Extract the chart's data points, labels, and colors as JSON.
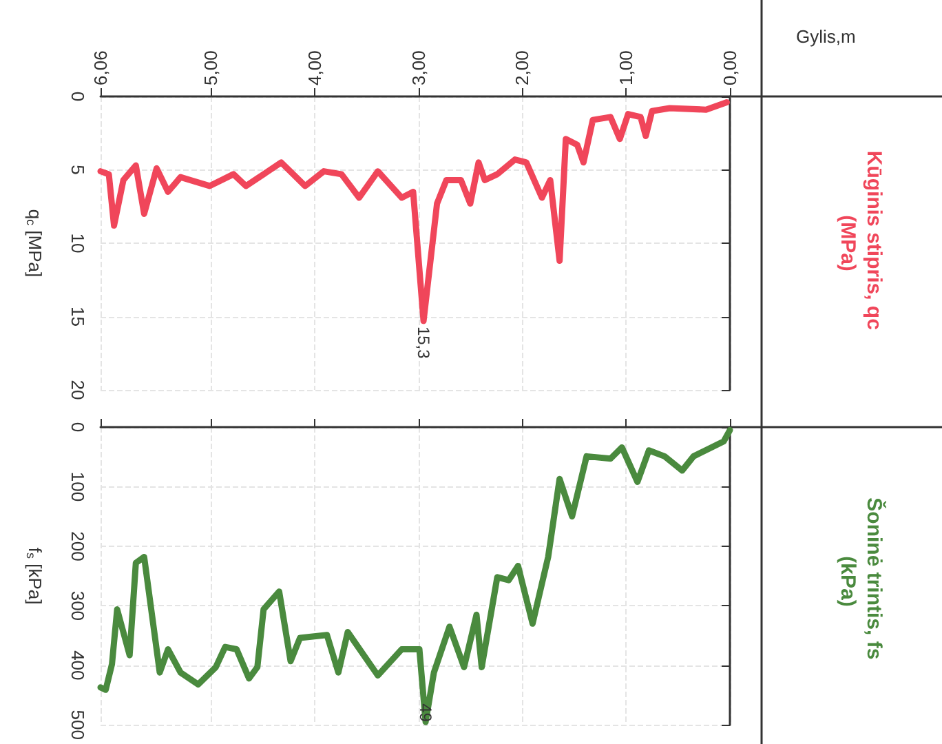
{
  "chart_data": [
    {
      "type": "line",
      "xlabel": "Gylis,m",
      "ylabel": "q$_{c}$ [MPa]",
      "xlim": [
        6.06,
        0
      ],
      "xticks": [
        {
          "value": 6.06,
          "label": "6,06"
        },
        {
          "value": 5,
          "label": "5,00"
        },
        {
          "value": 4,
          "label": "4,00"
        },
        {
          "value": 3,
          "label": "3,00"
        },
        {
          "value": 2,
          "label": "2,00"
        },
        {
          "value": 1,
          "label": "1,00"
        },
        {
          "value": 0,
          "label": "0,00"
        }
      ],
      "ylim": [
        20,
        0
      ],
      "yticks": [
        0,
        5,
        10,
        15,
        20
      ],
      "grid": true,
      "marker": "none",
      "line_style": "solid",
      "series": [
        {
          "name": "Kūginis stipris, qc (MPa)",
          "color": "#f0465a",
          "x": [
            0.03,
            0.23,
            0.58,
            0.75,
            0.81,
            0.86,
            0.98,
            1.06,
            1.15,
            1.32,
            1.41,
            1.47,
            1.58,
            1.64,
            1.73,
            1.81,
            1.96,
            2.07,
            2.24,
            2.36,
            2.42,
            2.5,
            2.59,
            2.73,
            2.82,
            2.95,
            3.05,
            3.16,
            3.39,
            3.57,
            3.74,
            3.91,
            4.09,
            4.32,
            4.49,
            4.66,
            4.78,
            5.01,
            5.29,
            5.41,
            5.52,
            5.64,
            5.72,
            5.84,
            5.93,
            5.98,
            6.06
          ],
          "values": [
            0.4,
            0.9,
            0.8,
            1.0,
            2.7,
            1.4,
            1.2,
            2.9,
            1.4,
            1.6,
            4.5,
            3.3,
            2.9,
            11.2,
            5.7,
            6.9,
            4.5,
            4.3,
            5.3,
            5.7,
            4.5,
            7.3,
            5.7,
            5.7,
            7.3,
            15.3,
            6.5,
            6.9,
            5.1,
            6.9,
            5.3,
            5.1,
            6.1,
            4.5,
            5.3,
            6.1,
            5.3,
            6.1,
            5.5,
            6.5,
            4.9,
            8.0,
            4.7,
            5.7,
            8.8,
            5.3,
            5.1
          ]
        }
      ],
      "annotations": [
        {
          "text": "15,3",
          "x": 2.95,
          "y": 15.3
        }
      ]
    },
    {
      "type": "line",
      "ylabel": "f$_{s}$ [kPa]",
      "xlim": [
        6.06,
        0
      ],
      "xticks": [
        {
          "value": 6.06,
          "label": null
        },
        {
          "value": 5,
          "label": null
        },
        {
          "value": 4,
          "label": null
        },
        {
          "value": 3,
          "label": null
        },
        {
          "value": 2,
          "label": null
        },
        {
          "value": 1,
          "label": null
        },
        {
          "value": 0,
          "label": null
        }
      ],
      "ylim": [
        500,
        0
      ],
      "yticks": [
        0,
        100,
        200,
        300,
        400,
        500
      ],
      "grid": true,
      "marker": "none",
      "line_style": "solid",
      "tick_labels": "y",
      "series": [
        {
          "name": "Šoninė trintis, fs (kPa)",
          "color": "#4a8a3e",
          "x": [
            0.0,
            0.06,
            0.35,
            0.46,
            0.63,
            0.78,
            0.89,
            1.04,
            1.15,
            1.38,
            1.52,
            1.64,
            1.75,
            1.9,
            2.04,
            2.13,
            2.24,
            2.39,
            2.44,
            2.56,
            2.7,
            2.85,
            2.93,
            2.99,
            3.16,
            3.39,
            3.68,
            3.77,
            3.88,
            4.14,
            4.23,
            4.34,
            4.49,
            4.55,
            4.63,
            4.75,
            4.86,
            4.95,
            5.12,
            5.29,
            5.41,
            5.49,
            5.64,
            5.72,
            5.78,
            5.9,
            5.95,
            6.01,
            6.06
          ],
          "values": [
            5,
            24,
            49,
            73,
            49,
            39,
            92,
            34,
            53,
            49,
            150,
            87,
            218,
            330,
            233,
            257,
            252,
            403,
            315,
            403,
            335,
            412,
            495,
            373,
            373,
            417,
            344,
            412,
            349,
            354,
            393,
            276,
            306,
            403,
            422,
            373,
            369,
            403,
            432,
            412,
            373,
            412,
            218,
            228,
            383,
            306,
            398,
            441,
            437
          ]
        }
      ],
      "annotations": [
        {
          "text": "49",
          "x": 2.93,
          "y": 495
        }
      ]
    }
  ]
}
